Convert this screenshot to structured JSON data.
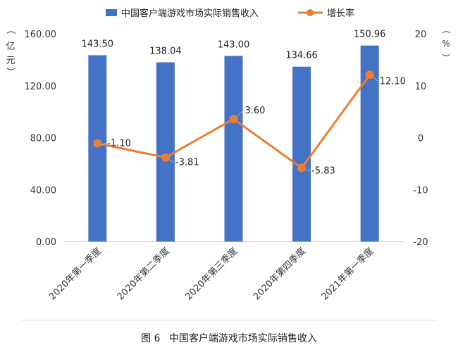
{
  "chart_data": {
    "type": "bar",
    "categories": [
      "2020年第一季度",
      "2020年第二季度",
      "2020年第三季度",
      "2020年第四季度",
      "2021年第一季度"
    ],
    "series": [
      {
        "name": "中国客户端游戏市场实际销售收入",
        "type": "bar",
        "axis": "left",
        "values": [
          143.5,
          138.04,
          143.0,
          134.66,
          150.96
        ],
        "labels": [
          "143.50",
          "138.04",
          "143.00",
          "134.66",
          "150.96"
        ]
      },
      {
        "name": "增长率",
        "type": "line",
        "axis": "right",
        "values": [
          -1.1,
          -3.81,
          3.6,
          -5.83,
          12.1
        ],
        "labels": [
          "-1.10",
          "-3.81",
          "3.60",
          "-5.83",
          "12.10"
        ]
      }
    ],
    "y_left": {
      "label": "（亿元）",
      "ylim": [
        0,
        160
      ],
      "ticks": [
        0,
        40,
        80,
        120,
        160
      ],
      "tick_labels": [
        "0.00",
        "40.00",
        "80.00",
        "120.00",
        "160.00"
      ]
    },
    "y_right": {
      "label": "（%）",
      "ylim": [
        -20,
        20
      ],
      "ticks": [
        -20,
        -10,
        0,
        10,
        20
      ],
      "tick_labels": [
        "-20",
        "-10",
        "0",
        "10",
        "20"
      ]
    },
    "legend_position": "top",
    "grid": false,
    "colors": {
      "bar": "#4472C4",
      "line": "#ED7D31"
    }
  },
  "caption": {
    "figure_no": "图 6",
    "title": "中国客户端游戏市场实际销售收入"
  }
}
